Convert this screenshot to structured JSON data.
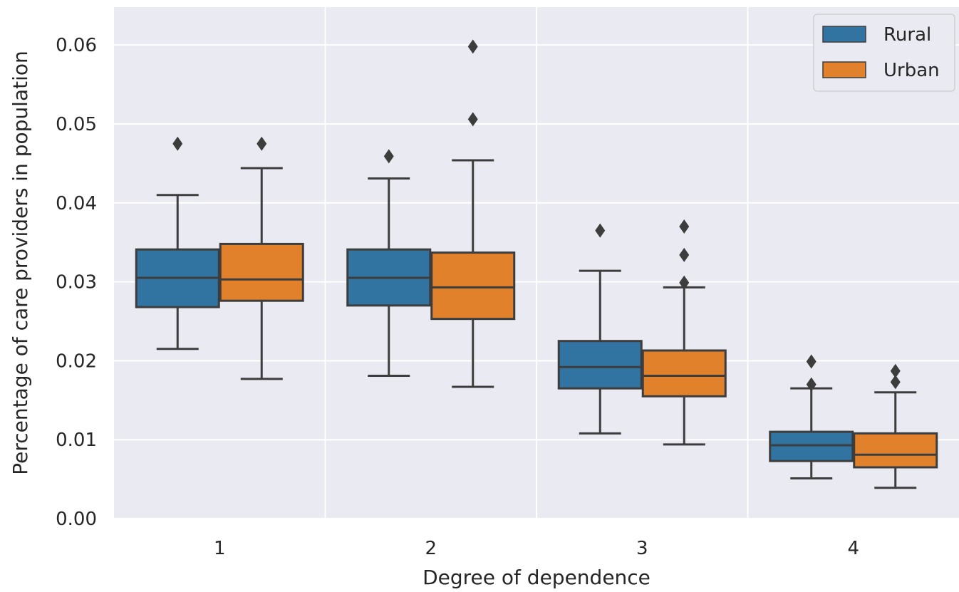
{
  "chart_data": {
    "type": "boxplot",
    "xlabel": "Degree of dependence",
    "ylabel": "Percentage of care providers in population",
    "categories": [
      "1",
      "2",
      "3",
      "4"
    ],
    "ylim": [
      0.0,
      0.0648
    ],
    "yticks": [
      "0.00",
      "0.01",
      "0.02",
      "0.03",
      "0.04",
      "0.05",
      "0.06"
    ],
    "grid": true,
    "legend_position": "top-right",
    "series": [
      {
        "name": "Rural",
        "color": "#3274a1",
        "boxes": [
          {
            "category": "1",
            "whisker_low": 0.0215,
            "q1": 0.0268,
            "median": 0.0305,
            "q3": 0.0341,
            "whisker_high": 0.041,
            "outliers": [
              0.0475
            ]
          },
          {
            "category": "2",
            "whisker_low": 0.0181,
            "q1": 0.027,
            "median": 0.0305,
            "q3": 0.0341,
            "whisker_high": 0.0431,
            "outliers": [
              0.0459
            ]
          },
          {
            "category": "3",
            "whisker_low": 0.0108,
            "q1": 0.0165,
            "median": 0.0192,
            "q3": 0.0225,
            "whisker_high": 0.0314,
            "outliers": [
              0.0365
            ]
          },
          {
            "category": "4",
            "whisker_low": 0.0051,
            "q1": 0.0073,
            "median": 0.0093,
            "q3": 0.011,
            "whisker_high": 0.0165,
            "outliers": [
              0.017,
              0.0199
            ]
          }
        ]
      },
      {
        "name": "Urban",
        "color": "#e1812c",
        "boxes": [
          {
            "category": "1",
            "whisker_low": 0.0177,
            "q1": 0.0276,
            "median": 0.0303,
            "q3": 0.0348,
            "whisker_high": 0.0444,
            "outliers": [
              0.0475
            ]
          },
          {
            "category": "2",
            "whisker_low": 0.0167,
            "q1": 0.0253,
            "median": 0.0293,
            "q3": 0.0337,
            "whisker_high": 0.0454,
            "outliers": [
              0.0506,
              0.0598
            ]
          },
          {
            "category": "3",
            "whisker_low": 0.0094,
            "q1": 0.0155,
            "median": 0.0181,
            "q3": 0.0213,
            "whisker_high": 0.0293,
            "outliers": [
              0.0299,
              0.0334,
              0.037
            ]
          },
          {
            "category": "4",
            "whisker_low": 0.0039,
            "q1": 0.0065,
            "median": 0.0081,
            "q3": 0.0108,
            "whisker_high": 0.016,
            "outliers": [
              0.0173,
              0.0187
            ]
          }
        ]
      }
    ]
  }
}
